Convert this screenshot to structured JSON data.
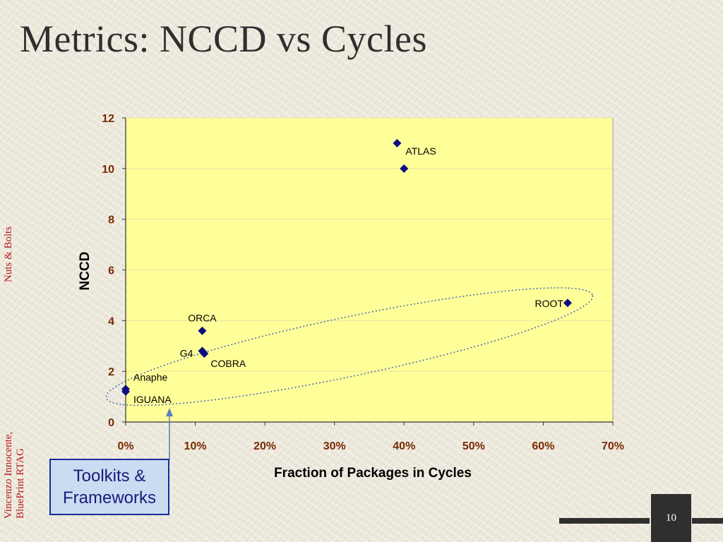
{
  "slide": {
    "title": "Metrics: NCCD vs Cycles",
    "side_text_top": "Nuts & Bolts",
    "side_text_bottom_line1": "Vincenzo Innocente,",
    "side_text_bottom_line2": "BluePrint RTAG",
    "callout_line1": "Toolkits &",
    "callout_line2": "Frameworks",
    "page_number": "10"
  },
  "chart_data": {
    "type": "scatter",
    "title": "",
    "xlabel": "Fraction of Packages in Cycles",
    "ylabel": "NCCD",
    "xlim": [
      0,
      0.7
    ],
    "ylim": [
      0,
      12
    ],
    "x_ticks": [
      0,
      0.1,
      0.2,
      0.3,
      0.4,
      0.5,
      0.6,
      0.7
    ],
    "x_tick_labels": [
      "0%",
      "10%",
      "20%",
      "30%",
      "40%",
      "50%",
      "60%",
      "70%"
    ],
    "y_ticks": [
      0,
      2,
      4,
      6,
      8,
      10,
      12
    ],
    "y_tick_labels": [
      "0",
      "2",
      "4",
      "6",
      "8",
      "10",
      "12"
    ],
    "grid": true,
    "legend": "none",
    "colors": {
      "plot_background": "#ffff99",
      "marker": "#0d0d80",
      "tick_label": "#7a2a00",
      "ellipse": "#4a6fb4",
      "gridline": "#e8e2a0"
    },
    "points": [
      {
        "x": 0.39,
        "y": 11.0,
        "label": "ATLAS"
      },
      {
        "x": 0.4,
        "y": 10.0,
        "label": ""
      },
      {
        "x": 0.635,
        "y": 4.7,
        "label": "ROOT"
      },
      {
        "x": 0.11,
        "y": 3.6,
        "label": "ORCA"
      },
      {
        "x": 0.11,
        "y": 2.8,
        "label": "G4"
      },
      {
        "x": 0.113,
        "y": 2.7,
        "label": "COBRA"
      },
      {
        "x": 0.0,
        "y": 1.3,
        "label": "Anaphe"
      },
      {
        "x": 0.0,
        "y": 1.2,
        "label": "IGUANA"
      }
    ],
    "annotations": [
      {
        "type": "ellipse",
        "text": "Toolkits & Frameworks"
      }
    ]
  }
}
